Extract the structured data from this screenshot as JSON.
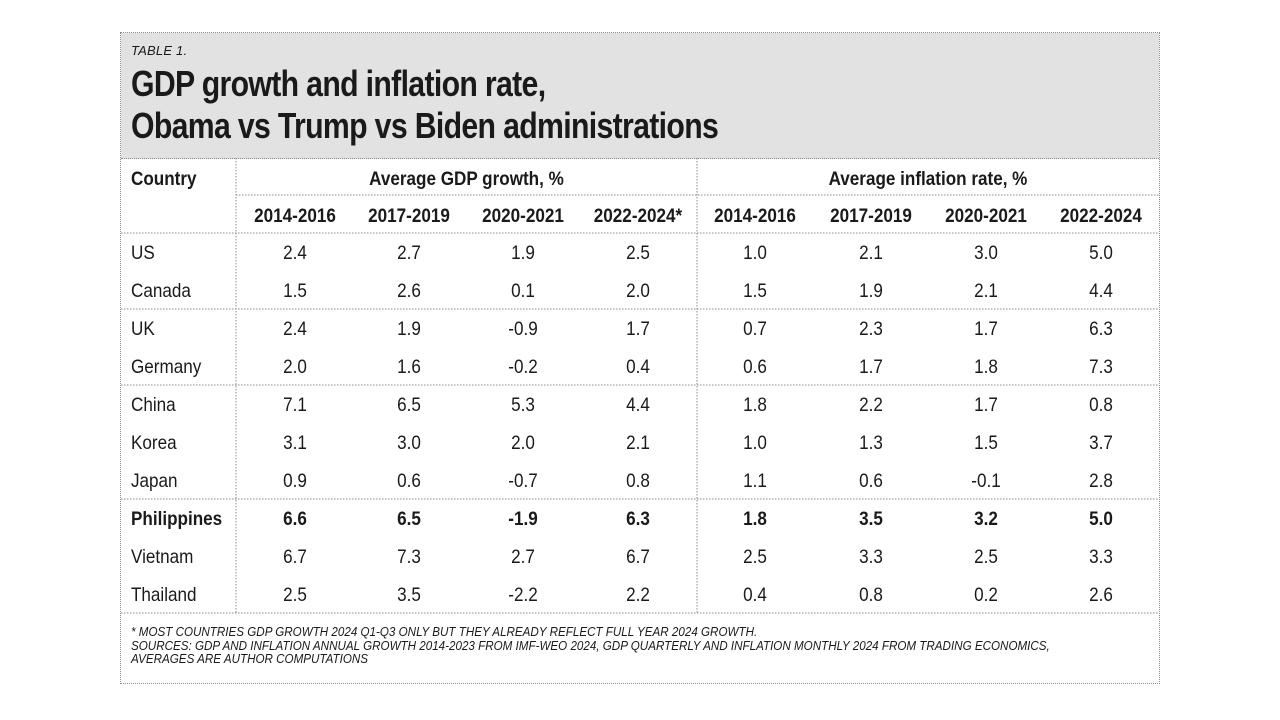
{
  "table_label": "TABLE 1.",
  "title_lines": [
    "GDP growth and inflation rate,",
    "Obama vs Trump vs Biden administrations"
  ],
  "footnotes": [
    "* MOST COUNTRIES GDP GROWTH 2024 Q1-Q3 ONLY BUT THEY ALREADY REFLECT FULL YEAR 2024 GROWTH.",
    "SOURCES: GDP AND INFLATION ANNUAL GROWTH 2014-2023 FROM IMF-WEO 2024, GDP QUARTERLY AND INFLATION MONTHLY 2024 FROM TRADING ECONOMICS,",
    "AVERAGES ARE AUTHOR COMPUTATIONS"
  ],
  "chart_data": {
    "type": "table",
    "row_header": "Country",
    "groups": [
      {
        "name": "Average GDP growth, %",
        "columns": [
          "2014-2016",
          "2017-2019",
          "2020-2021",
          "2022-2024*"
        ]
      },
      {
        "name": "Average inflation rate, %",
        "columns": [
          "2014-2016",
          "2017-2019",
          "2020-2021",
          "2022-2024"
        ]
      }
    ],
    "row_groups": [
      [
        {
          "country": "US",
          "bold": false,
          "values": [
            "2.4",
            "2.7",
            "1.9",
            "2.5",
            "1.0",
            "2.1",
            "3.0",
            "5.0"
          ]
        },
        {
          "country": "Canada",
          "bold": false,
          "values": [
            "1.5",
            "2.6",
            "0.1",
            "2.0",
            "1.5",
            "1.9",
            "2.1",
            "4.4"
          ]
        }
      ],
      [
        {
          "country": "UK",
          "bold": false,
          "values": [
            "2.4",
            "1.9",
            "-0.9",
            "1.7",
            "0.7",
            "2.3",
            "1.7",
            "6.3"
          ]
        },
        {
          "country": "Germany",
          "bold": false,
          "values": [
            "2.0",
            "1.6",
            "-0.2",
            "0.4",
            "0.6",
            "1.7",
            "1.8",
            "7.3"
          ]
        }
      ],
      [
        {
          "country": "China",
          "bold": false,
          "values": [
            "7.1",
            "6.5",
            "5.3",
            "4.4",
            "1.8",
            "2.2",
            "1.7",
            "0.8"
          ]
        },
        {
          "country": "Korea",
          "bold": false,
          "values": [
            "3.1",
            "3.0",
            "2.0",
            "2.1",
            "1.0",
            "1.3",
            "1.5",
            "3.7"
          ]
        },
        {
          "country": "Japan",
          "bold": false,
          "values": [
            "0.9",
            "0.6",
            "-0.7",
            "0.8",
            "1.1",
            "0.6",
            "-0.1",
            "2.8"
          ]
        }
      ],
      [
        {
          "country": "Philippines",
          "bold": true,
          "values": [
            "6.6",
            "6.5",
            "-1.9",
            "6.3",
            "1.8",
            "3.5",
            "3.2",
            "5.0"
          ]
        },
        {
          "country": "Vietnam",
          "bold": false,
          "values": [
            "6.7",
            "7.3",
            "2.7",
            "6.7",
            "2.5",
            "3.3",
            "2.5",
            "3.3"
          ]
        },
        {
          "country": "Thailand",
          "bold": false,
          "values": [
            "2.5",
            "3.5",
            "-2.2",
            "2.2",
            "0.4",
            "0.8",
            "0.2",
            "2.6"
          ]
        }
      ]
    ]
  }
}
